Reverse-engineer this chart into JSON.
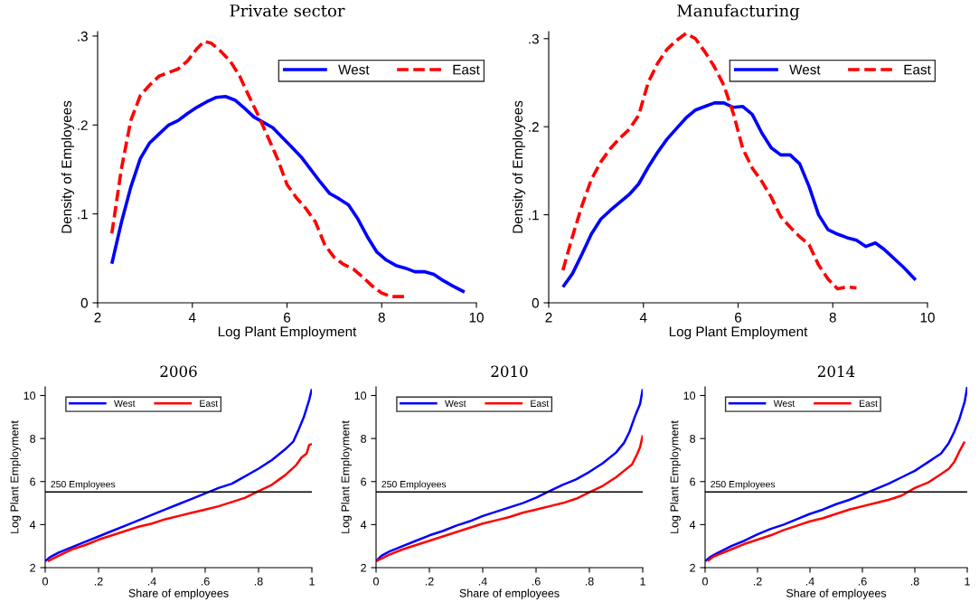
{
  "chart_data": [
    {
      "type": "line",
      "title": "Private sector",
      "xlabel": "Log Plant Employment",
      "ylabel": "Density of Employees",
      "xlim": [
        2,
        10
      ],
      "xticks": [
        2,
        4,
        6,
        8,
        10
      ],
      "ylim": [
        0,
        0.305
      ],
      "yticks": [
        {
          "value": 0,
          "label": "0"
        },
        {
          "value": 0.1,
          "label": ".1"
        },
        {
          "value": 0.2,
          "label": ".2"
        },
        {
          "value": 0.3,
          "label": ".3"
        }
      ],
      "legend": "top right",
      "grid": false,
      "series": [
        {
          "name": "West",
          "color": "#0000ff",
          "line_style": "solid",
          "x": [
            2.3,
            2.5,
            2.7,
            2.9,
            3.1,
            3.3,
            3.5,
            3.7,
            3.9,
            4.1,
            4.3,
            4.5,
            4.7,
            4.9,
            5.1,
            5.3,
            5.5,
            5.7,
            5.9,
            6.1,
            6.3,
            6.5,
            6.7,
            6.9,
            7.1,
            7.3,
            7.5,
            7.7,
            7.9,
            8.1,
            8.3,
            8.5,
            8.7,
            8.9,
            9.1,
            9.3,
            9.5,
            9.75
          ],
          "values": [
            0.044,
            0.09,
            0.13,
            0.162,
            0.18,
            0.19,
            0.2,
            0.205,
            0.213,
            0.22,
            0.226,
            0.231,
            0.232,
            0.228,
            0.219,
            0.209,
            0.203,
            0.197,
            0.186,
            0.175,
            0.164,
            0.15,
            0.136,
            0.123,
            0.117,
            0.11,
            0.094,
            0.074,
            0.057,
            0.048,
            0.042,
            0.039,
            0.035,
            0.035,
            0.032,
            0.025,
            0.019,
            0.012
          ]
        },
        {
          "name": "East",
          "color": "#ff0000",
          "line_style": "dashed",
          "x": [
            2.3,
            2.5,
            2.7,
            2.9,
            3.1,
            3.3,
            3.5,
            3.7,
            3.9,
            4.1,
            4.25,
            4.4,
            4.6,
            4.8,
            5.0,
            5.2,
            5.4,
            5.6,
            5.8,
            6.0,
            6.2,
            6.4,
            6.6,
            6.8,
            7.0,
            7.2,
            7.4,
            7.6,
            7.8,
            8.0,
            8.2,
            8.5
          ],
          "values": [
            0.078,
            0.15,
            0.205,
            0.233,
            0.245,
            0.255,
            0.259,
            0.263,
            0.272,
            0.286,
            0.294,
            0.292,
            0.283,
            0.272,
            0.255,
            0.232,
            0.21,
            0.186,
            0.162,
            0.133,
            0.118,
            0.106,
            0.091,
            0.065,
            0.051,
            0.043,
            0.038,
            0.029,
            0.019,
            0.011,
            0.007,
            0.007
          ]
        }
      ]
    },
    {
      "type": "line",
      "title": "Manufacturing",
      "xlabel": "Log Plant Employment",
      "ylabel": "Density of Employees",
      "xlim": [
        2,
        10
      ],
      "xticks": [
        2,
        4,
        6,
        8,
        10
      ],
      "ylim": [
        0,
        0.308
      ],
      "yticks": [
        {
          "value": 0,
          "label": "0"
        },
        {
          "value": 0.1,
          "label": ".1"
        },
        {
          "value": 0.2,
          "label": ".2"
        },
        {
          "value": 0.3,
          "label": ".3"
        }
      ],
      "legend": "top right",
      "grid": false,
      "series": [
        {
          "name": "West",
          "color": "#0000ff",
          "line_style": "solid",
          "x": [
            2.3,
            2.5,
            2.7,
            2.9,
            3.1,
            3.3,
            3.5,
            3.7,
            3.9,
            4.1,
            4.3,
            4.5,
            4.7,
            4.9,
            5.1,
            5.3,
            5.5,
            5.7,
            5.9,
            6.1,
            6.3,
            6.5,
            6.7,
            6.9,
            7.1,
            7.3,
            7.5,
            7.7,
            7.9,
            8.1,
            8.3,
            8.5,
            8.7,
            8.9,
            9.1,
            9.3,
            9.5,
            9.75
          ],
          "values": [
            0.018,
            0.033,
            0.055,
            0.078,
            0.095,
            0.105,
            0.114,
            0.123,
            0.135,
            0.154,
            0.171,
            0.186,
            0.198,
            0.21,
            0.219,
            0.223,
            0.227,
            0.227,
            0.222,
            0.223,
            0.214,
            0.193,
            0.176,
            0.168,
            0.168,
            0.158,
            0.132,
            0.1,
            0.083,
            0.078,
            0.074,
            0.071,
            0.064,
            0.068,
            0.06,
            0.05,
            0.04,
            0.026
          ]
        },
        {
          "name": "East",
          "color": "#ff0000",
          "line_style": "dashed",
          "x": [
            2.3,
            2.5,
            2.7,
            2.9,
            3.1,
            3.3,
            3.5,
            3.7,
            3.9,
            4.1,
            4.3,
            4.5,
            4.7,
            4.9,
            5.1,
            5.3,
            5.5,
            5.7,
            5.9,
            6.1,
            6.3,
            6.5,
            6.7,
            6.9,
            7.1,
            7.3,
            7.5,
            7.7,
            7.9,
            8.1,
            8.3,
            8.5
          ],
          "values": [
            0.037,
            0.075,
            0.11,
            0.14,
            0.16,
            0.175,
            0.187,
            0.197,
            0.213,
            0.25,
            0.272,
            0.288,
            0.298,
            0.306,
            0.3,
            0.285,
            0.268,
            0.247,
            0.215,
            0.175,
            0.153,
            0.138,
            0.12,
            0.098,
            0.086,
            0.075,
            0.066,
            0.043,
            0.027,
            0.016,
            0.018,
            0.017
          ]
        }
      ]
    },
    {
      "type": "line",
      "title": "2006",
      "xlabel": "Share of employees",
      "ylabel": "Log Plant Employment",
      "xlim": [
        0,
        1
      ],
      "xticks": [
        {
          "value": 0,
          "label": "0"
        },
        {
          "value": 0.2,
          "label": ".2"
        },
        {
          "value": 0.4,
          "label": ".4"
        },
        {
          "value": 0.6,
          "label": ".6"
        },
        {
          "value": 0.8,
          "label": ".8"
        },
        {
          "value": 1,
          "label": "1"
        }
      ],
      "ylim": [
        2,
        10.4
      ],
      "yticks": [
        2,
        4,
        6,
        8,
        10
      ],
      "legend": "top left",
      "grid": false,
      "ref_lines": [
        {
          "axis": "y",
          "value": 5.52,
          "label": "250 Employees",
          "color": "#000000"
        }
      ],
      "series": [
        {
          "name": "West",
          "color": "#0000ff",
          "line_style": "solid",
          "x": [
            0,
            0.02,
            0.05,
            0.1,
            0.15,
            0.2,
            0.25,
            0.3,
            0.35,
            0.4,
            0.45,
            0.5,
            0.55,
            0.6,
            0.65,
            0.7,
            0.75,
            0.8,
            0.85,
            0.9,
            0.93,
            0.95,
            0.97,
            0.99,
            1.0
          ],
          "values": [
            2.3,
            2.5,
            2.7,
            2.95,
            3.2,
            3.45,
            3.7,
            3.95,
            4.2,
            4.45,
            4.7,
            4.95,
            5.2,
            5.45,
            5.7,
            5.9,
            6.25,
            6.6,
            7.0,
            7.5,
            7.85,
            8.4,
            9.0,
            9.8,
            10.3
          ]
        },
        {
          "name": "East",
          "color": "#ff0000",
          "line_style": "solid",
          "x": [
            0.01,
            0.05,
            0.1,
            0.15,
            0.2,
            0.25,
            0.3,
            0.35,
            0.4,
            0.45,
            0.5,
            0.55,
            0.6,
            0.65,
            0.7,
            0.75,
            0.8,
            0.85,
            0.9,
            0.94,
            0.96,
            0.98,
            0.99,
            1.0
          ],
          "values": [
            2.3,
            2.55,
            2.85,
            3.05,
            3.3,
            3.5,
            3.7,
            3.9,
            4.05,
            4.25,
            4.4,
            4.55,
            4.7,
            4.85,
            5.05,
            5.25,
            5.55,
            5.85,
            6.3,
            6.75,
            7.1,
            7.3,
            7.7,
            7.75
          ]
        }
      ]
    },
    {
      "type": "line",
      "title": "2010",
      "xlabel": "Share of employees",
      "ylabel": "Log Plant Employment",
      "xlim": [
        0,
        1
      ],
      "xticks": [
        {
          "value": 0,
          "label": "0"
        },
        {
          "value": 0.2,
          "label": ".2"
        },
        {
          "value": 0.4,
          "label": ".4"
        },
        {
          "value": 0.6,
          "label": ".6"
        },
        {
          "value": 0.8,
          "label": ".8"
        },
        {
          "value": 1,
          "label": "1"
        }
      ],
      "ylim": [
        2,
        10.4
      ],
      "yticks": [
        2,
        4,
        6,
        8,
        10
      ],
      "legend": "top left",
      "grid": false,
      "ref_lines": [
        {
          "axis": "y",
          "value": 5.52,
          "label": "250 Employees",
          "color": "#000000"
        }
      ],
      "series": [
        {
          "name": "West",
          "color": "#0000ff",
          "line_style": "solid",
          "x": [
            0,
            0.02,
            0.05,
            0.1,
            0.15,
            0.2,
            0.25,
            0.3,
            0.35,
            0.4,
            0.45,
            0.5,
            0.55,
            0.6,
            0.65,
            0.7,
            0.75,
            0.8,
            0.85,
            0.9,
            0.93,
            0.95,
            0.97,
            0.99,
            1.0
          ],
          "values": [
            2.3,
            2.55,
            2.75,
            3.0,
            3.25,
            3.5,
            3.7,
            3.95,
            4.15,
            4.4,
            4.6,
            4.8,
            5.0,
            5.25,
            5.55,
            5.85,
            6.1,
            6.45,
            6.85,
            7.35,
            7.8,
            8.3,
            9.0,
            9.6,
            10.3
          ]
        },
        {
          "name": "East",
          "color": "#ff0000",
          "line_style": "solid",
          "x": [
            0,
            0.05,
            0.1,
            0.15,
            0.2,
            0.25,
            0.3,
            0.35,
            0.4,
            0.45,
            0.5,
            0.55,
            0.6,
            0.65,
            0.7,
            0.75,
            0.8,
            0.85,
            0.9,
            0.93,
            0.96,
            0.98,
            0.99,
            1.0
          ],
          "values": [
            2.3,
            2.6,
            2.85,
            3.05,
            3.25,
            3.45,
            3.65,
            3.85,
            4.05,
            4.2,
            4.35,
            4.55,
            4.7,
            4.85,
            5.0,
            5.2,
            5.5,
            5.8,
            6.2,
            6.5,
            6.8,
            7.3,
            7.6,
            8.15
          ]
        }
      ]
    },
    {
      "type": "line",
      "title": "2014",
      "xlabel": "Share of employees",
      "ylabel": "Log Plant Employment",
      "xlim": [
        0,
        1
      ],
      "xticks": [
        {
          "value": 0,
          "label": "0"
        },
        {
          "value": 0.2,
          "label": ".2"
        },
        {
          "value": 0.4,
          "label": ".4"
        },
        {
          "value": 0.6,
          "label": ".6"
        },
        {
          "value": 0.8,
          "label": ".8"
        },
        {
          "value": 1,
          "label": "1"
        }
      ],
      "ylim": [
        2,
        10.4
      ],
      "yticks": [
        2,
        4,
        6,
        8,
        10
      ],
      "legend": "top left",
      "grid": false,
      "ref_lines": [
        {
          "axis": "y",
          "value": 5.52,
          "label": "250 Employees",
          "color": "#000000"
        }
      ],
      "series": [
        {
          "name": "West",
          "color": "#0000ff",
          "line_style": "solid",
          "x": [
            0,
            0.02,
            0.05,
            0.1,
            0.15,
            0.2,
            0.25,
            0.3,
            0.35,
            0.4,
            0.45,
            0.5,
            0.55,
            0.6,
            0.65,
            0.7,
            0.75,
            0.8,
            0.85,
            0.9,
            0.93,
            0.95,
            0.97,
            0.99,
            1.0
          ],
          "values": [
            2.3,
            2.5,
            2.7,
            3.0,
            3.25,
            3.55,
            3.8,
            4.0,
            4.25,
            4.5,
            4.7,
            4.95,
            5.15,
            5.4,
            5.65,
            5.9,
            6.2,
            6.5,
            6.9,
            7.3,
            7.8,
            8.3,
            8.9,
            9.7,
            10.4
          ]
        },
        {
          "name": "East",
          "color": "#ff0000",
          "line_style": "solid",
          "x": [
            0.01,
            0.03,
            0.05,
            0.1,
            0.15,
            0.2,
            0.25,
            0.3,
            0.35,
            0.4,
            0.45,
            0.5,
            0.55,
            0.6,
            0.65,
            0.7,
            0.75,
            0.8,
            0.85,
            0.9,
            0.93,
            0.95,
            0.97,
            0.99
          ],
          "values": [
            2.3,
            2.5,
            2.6,
            2.85,
            3.1,
            3.3,
            3.5,
            3.75,
            3.95,
            4.15,
            4.3,
            4.5,
            4.7,
            4.85,
            5.0,
            5.15,
            5.35,
            5.7,
            5.95,
            6.35,
            6.6,
            6.9,
            7.4,
            7.85
          ]
        }
      ]
    }
  ]
}
